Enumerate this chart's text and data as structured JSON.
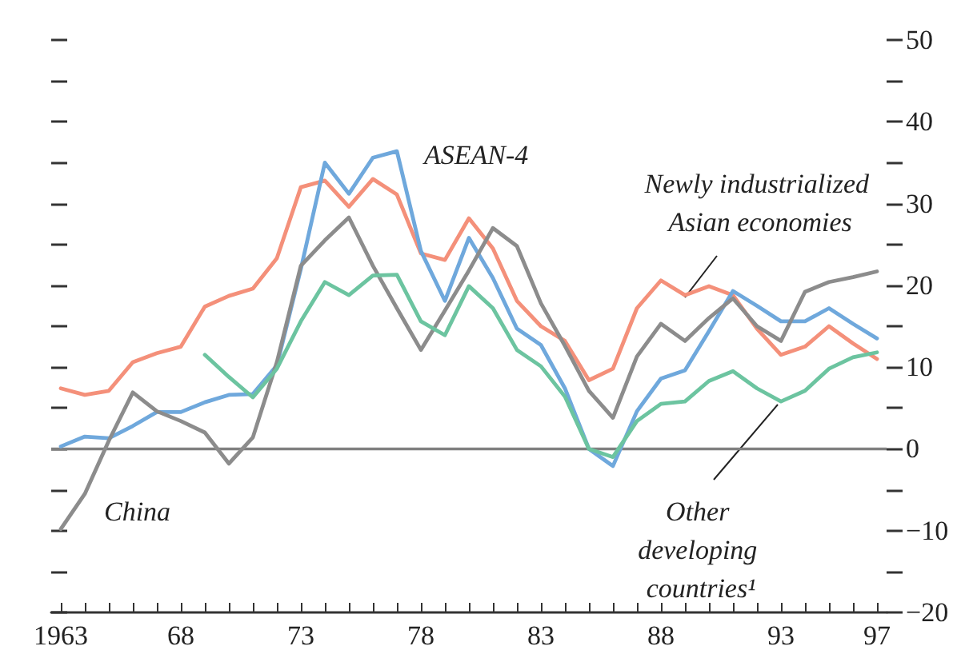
{
  "chart_data": {
    "type": "line",
    "x": [
      1963,
      1964,
      1965,
      1966,
      1967,
      1968,
      1969,
      1970,
      1971,
      1972,
      1973,
      1974,
      1975,
      1976,
      1977,
      1978,
      1979,
      1980,
      1981,
      1982,
      1983,
      1984,
      1985,
      1986,
      1987,
      1988,
      1989,
      1990,
      1991,
      1992,
      1993,
      1994,
      1995,
      1996,
      1997
    ],
    "series": [
      {
        "name": "Newly industrialized Asian economies",
        "color": "#f4907a",
        "values": [
          7.4,
          6.6,
          7.1,
          10.6,
          11.7,
          12.5,
          17.4,
          18.7,
          19.6,
          23.3,
          32.0,
          32.8,
          29.6,
          33.0,
          31.1,
          23.9,
          23.1,
          28.2,
          24.5,
          18.1,
          15.0,
          13.2,
          8.4,
          9.8,
          17.2,
          20.6,
          18.8,
          19.9,
          18.8,
          14.7,
          11.5,
          12.5,
          15.0,
          12.9,
          11.0
        ]
      },
      {
        "name": "ASEAN-4",
        "color": "#6fa8dc",
        "values": [
          0.3,
          1.5,
          1.3,
          2.8,
          4.5,
          4.5,
          5.7,
          6.6,
          6.7,
          10.2,
          22.0,
          35.0,
          31.2,
          35.6,
          36.4,
          24.2,
          18.1,
          25.8,
          20.9,
          14.7,
          12.7,
          7.4,
          0,
          -2.1,
          4.6,
          8.6,
          9.6,
          14.4,
          19.3,
          17.5,
          15.6,
          15.6,
          17.2,
          15.3,
          13.5
        ]
      },
      {
        "name": "China",
        "color": "#8c8c8c",
        "values": [
          -9.8,
          -5.5,
          1.0,
          6.9,
          4.6,
          3.4,
          2.0,
          -1.8,
          1.4,
          10.6,
          22.4,
          25.5,
          28.3,
          22.4,
          17.2,
          12.1,
          16.9,
          21.8,
          27.0,
          24.8,
          17.8,
          12.6,
          7.1,
          3.8,
          11.3,
          15.3,
          13.2,
          16.0,
          18.4,
          15.0,
          13.2,
          19.2,
          20.4,
          21.0,
          21.7
        ]
      },
      {
        "name": "Other developing countries¹",
        "color": "#6cc4a0",
        "values": [
          null,
          null,
          null,
          null,
          null,
          null,
          11.5,
          8.8,
          6.3,
          9.8,
          15.6,
          20.4,
          18.8,
          21.2,
          21.3,
          15.6,
          13.9,
          19.9,
          17.2,
          12.1,
          10.1,
          6.4,
          0,
          -1.0,
          3.4,
          5.5,
          5.8,
          8.3,
          9.5,
          7.4,
          5.8,
          7.1,
          9.8,
          11.2,
          11.8
        ]
      }
    ],
    "xlim": [
      1962.6,
      1997.4
    ],
    "xticks": [
      {
        "value": 1963,
        "label": "1963"
      },
      {
        "value": 1964,
        "label": null
      },
      {
        "value": 1965,
        "label": null
      },
      {
        "value": 1966,
        "label": null
      },
      {
        "value": 1967,
        "label": null
      },
      {
        "value": 1968,
        "label": "68"
      },
      {
        "value": 1969,
        "label": null
      },
      {
        "value": 1970,
        "label": null
      },
      {
        "value": 1971,
        "label": null
      },
      {
        "value": 1972,
        "label": null
      },
      {
        "value": 1973,
        "label": "73"
      },
      {
        "value": 1974,
        "label": null
      },
      {
        "value": 1975,
        "label": null
      },
      {
        "value": 1976,
        "label": null
      },
      {
        "value": 1977,
        "label": null
      },
      {
        "value": 1978,
        "label": "78"
      },
      {
        "value": 1979,
        "label": null
      },
      {
        "value": 1980,
        "label": null
      },
      {
        "value": 1981,
        "label": null
      },
      {
        "value": 1982,
        "label": null
      },
      {
        "value": 1983,
        "label": "83"
      },
      {
        "value": 1984,
        "label": null
      },
      {
        "value": 1985,
        "label": null
      },
      {
        "value": 1986,
        "label": null
      },
      {
        "value": 1987,
        "label": null
      },
      {
        "value": 1988,
        "label": "88"
      },
      {
        "value": 1989,
        "label": null
      },
      {
        "value": 1990,
        "label": null
      },
      {
        "value": 1991,
        "label": null
      },
      {
        "value": 1992,
        "label": null
      },
      {
        "value": 1993,
        "label": "93"
      },
      {
        "value": 1994,
        "label": null
      },
      {
        "value": 1995,
        "label": null
      },
      {
        "value": 1996,
        "label": null
      },
      {
        "value": 1997,
        "label": "97"
      }
    ],
    "ylim": [
      -20,
      50
    ],
    "yticks": [
      -20,
      {
        "value": -15,
        "label": null
      },
      -10,
      {
        "value": -5,
        "label": null
      },
      0,
      {
        "value": 5,
        "label": null
      },
      10,
      {
        "value": 15,
        "label": null
      },
      20,
      {
        "value": 25,
        "label": null
      },
      30,
      {
        "value": 35,
        "label": null
      },
      40,
      {
        "value": 45,
        "label": null
      },
      50
    ],
    "ref_lines": [
      {
        "axis": "y",
        "value": 0,
        "color": "#808080"
      }
    ],
    "legend": false,
    "grid": false,
    "marker": "none",
    "line_style": "solid"
  }
}
